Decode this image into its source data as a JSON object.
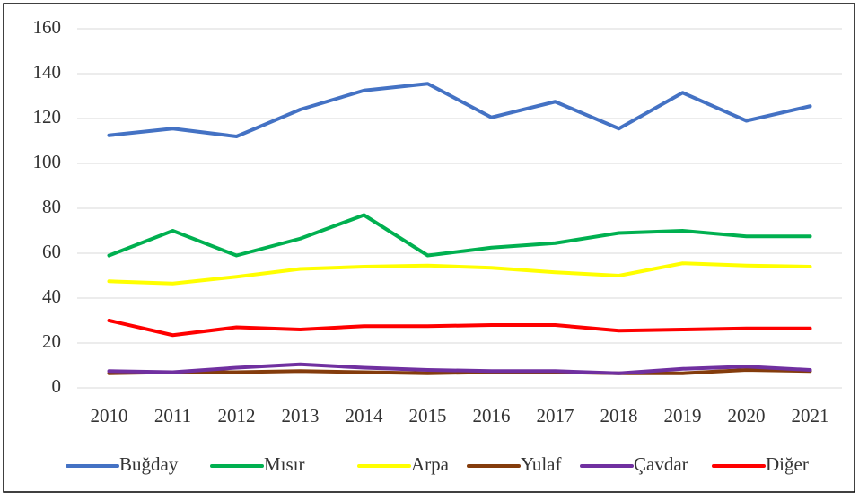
{
  "chart_data": {
    "type": "line",
    "categories": [
      "2010",
      "2011",
      "2012",
      "2013",
      "2014",
      "2015",
      "2016",
      "2017",
      "2018",
      "2019",
      "2020",
      "2021"
    ],
    "series": [
      {
        "name": "Buğday",
        "color": "#4472c4",
        "values": [
          112.5,
          115.5,
          112,
          124,
          132.5,
          135.5,
          120.5,
          127.5,
          115.5,
          131.5,
          119,
          125.5
        ]
      },
      {
        "name": "Mısır",
        "color": "#00b050",
        "values": [
          59,
          70,
          59,
          66.5,
          77,
          59,
          62.5,
          64.5,
          69,
          70,
          67.5,
          67.5
        ]
      },
      {
        "name": "Arpa",
        "color": "#ffff00",
        "values": [
          47.5,
          46.5,
          49.5,
          53,
          54,
          54.5,
          53.5,
          51.5,
          50,
          55.5,
          54.5,
          54
        ]
      },
      {
        "name": "Yulaf",
        "color": "#843c0c",
        "values": [
          6.5,
          7,
          7,
          7.5,
          7,
          6.5,
          7,
          7,
          6.5,
          6.5,
          8,
          7.5
        ]
      },
      {
        "name": "Çavdar",
        "color": "#7030a0",
        "values": [
          7.5,
          7,
          9,
          10.5,
          9,
          8,
          7.5,
          7.5,
          6.5,
          8.5,
          9.5,
          8
        ]
      },
      {
        "name": "Diğer",
        "color": "#ff0000",
        "values": [
          30,
          23.5,
          27,
          26,
          27.5,
          27.5,
          28,
          28,
          25.5,
          26,
          26.5,
          26.5
        ]
      }
    ],
    "ylim": [
      0,
      160
    ],
    "yticks": [
      0,
      20,
      40,
      60,
      80,
      100,
      120,
      140,
      160
    ],
    "grid": true,
    "legend": "bottom"
  }
}
